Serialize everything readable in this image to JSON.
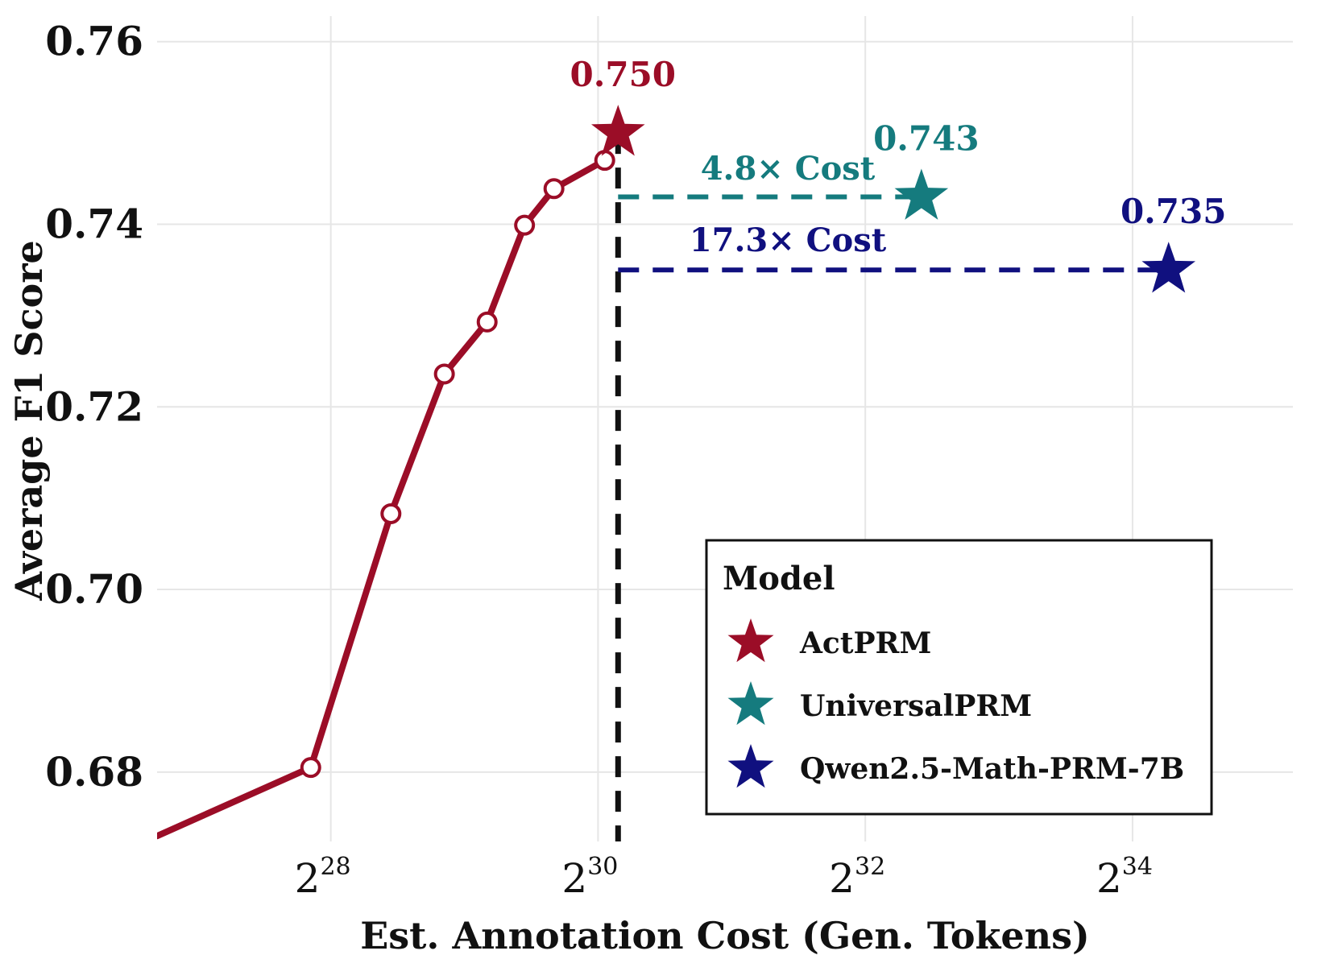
{
  "chart_data": {
    "type": "line",
    "title": "",
    "xlabel": "Est. Annotation Cost (Gen. Tokens)",
    "ylabel": "Average F1 Score",
    "x_scale": "log2",
    "xlim_log2": [
      26.7,
      35.2
    ],
    "ylim": [
      0.6724,
      0.7628
    ],
    "x_ticks": [
      {
        "base": "2",
        "exp": "28"
      },
      {
        "base": "2",
        "exp": "30"
      },
      {
        "base": "2",
        "exp": "32"
      },
      {
        "base": "2",
        "exp": "34"
      }
    ],
    "x_tick_values_log2": [
      28,
      30,
      32,
      34
    ],
    "y_ticks": [
      "0.68",
      "0.70",
      "0.72",
      "0.74",
      "0.76"
    ],
    "y_tick_values": [
      0.68,
      0.7,
      0.72,
      0.74,
      0.76
    ],
    "grid": true,
    "series": [
      {
        "name": "ActPRM curve",
        "color": "#9b0d27",
        "log2_x": [
          26.7,
          27.85,
          28.45,
          28.85,
          29.17,
          29.45,
          29.67,
          30.05
        ],
        "y": [
          0.673,
          0.6805,
          0.7083,
          0.7236,
          0.7293,
          0.7399,
          0.7439,
          0.747
        ]
      }
    ],
    "stars": [
      {
        "model": "ActPRM",
        "log2_x": 30.15,
        "y": 0.75,
        "label": "0.750",
        "color": "#9b0d27"
      },
      {
        "model": "UniversalPRM",
        "log2_x": 32.42,
        "y": 0.743,
        "label": "0.743",
        "color": "#157b7e"
      },
      {
        "model": "Qwen2.5-Math-PRM-7B",
        "log2_x": 34.27,
        "y": 0.735,
        "label": "0.735",
        "color": "#10107f"
      }
    ],
    "reference_lines": [
      {
        "type": "vertical",
        "log2_x": 30.15,
        "y_from": 0.6724,
        "y_to": 0.75,
        "color": "#111111",
        "style": "dashed"
      },
      {
        "type": "horizontal",
        "y": 0.743,
        "log2_x_from": 30.15,
        "log2_x_to": 32.42,
        "color": "#157b7e",
        "style": "dashed"
      },
      {
        "type": "horizontal",
        "y": 0.735,
        "log2_x_from": 30.15,
        "log2_x_to": 34.27,
        "color": "#10107f",
        "style": "dashed"
      }
    ],
    "annotations": [
      {
        "text": "4.8× Cost",
        "color": "#157b7e"
      },
      {
        "text": "17.3× Cost",
        "color": "#10107f"
      }
    ],
    "legend": {
      "title": "Model",
      "position": "bottom-right",
      "entries": [
        {
          "label": "ActPRM",
          "color": "#9b0d27",
          "marker": "star"
        },
        {
          "label": "UniversalPRM",
          "color": "#157b7e",
          "marker": "star"
        },
        {
          "label": "Qwen2.5-Math-PRM-7B",
          "color": "#10107f",
          "marker": "star"
        }
      ]
    }
  }
}
